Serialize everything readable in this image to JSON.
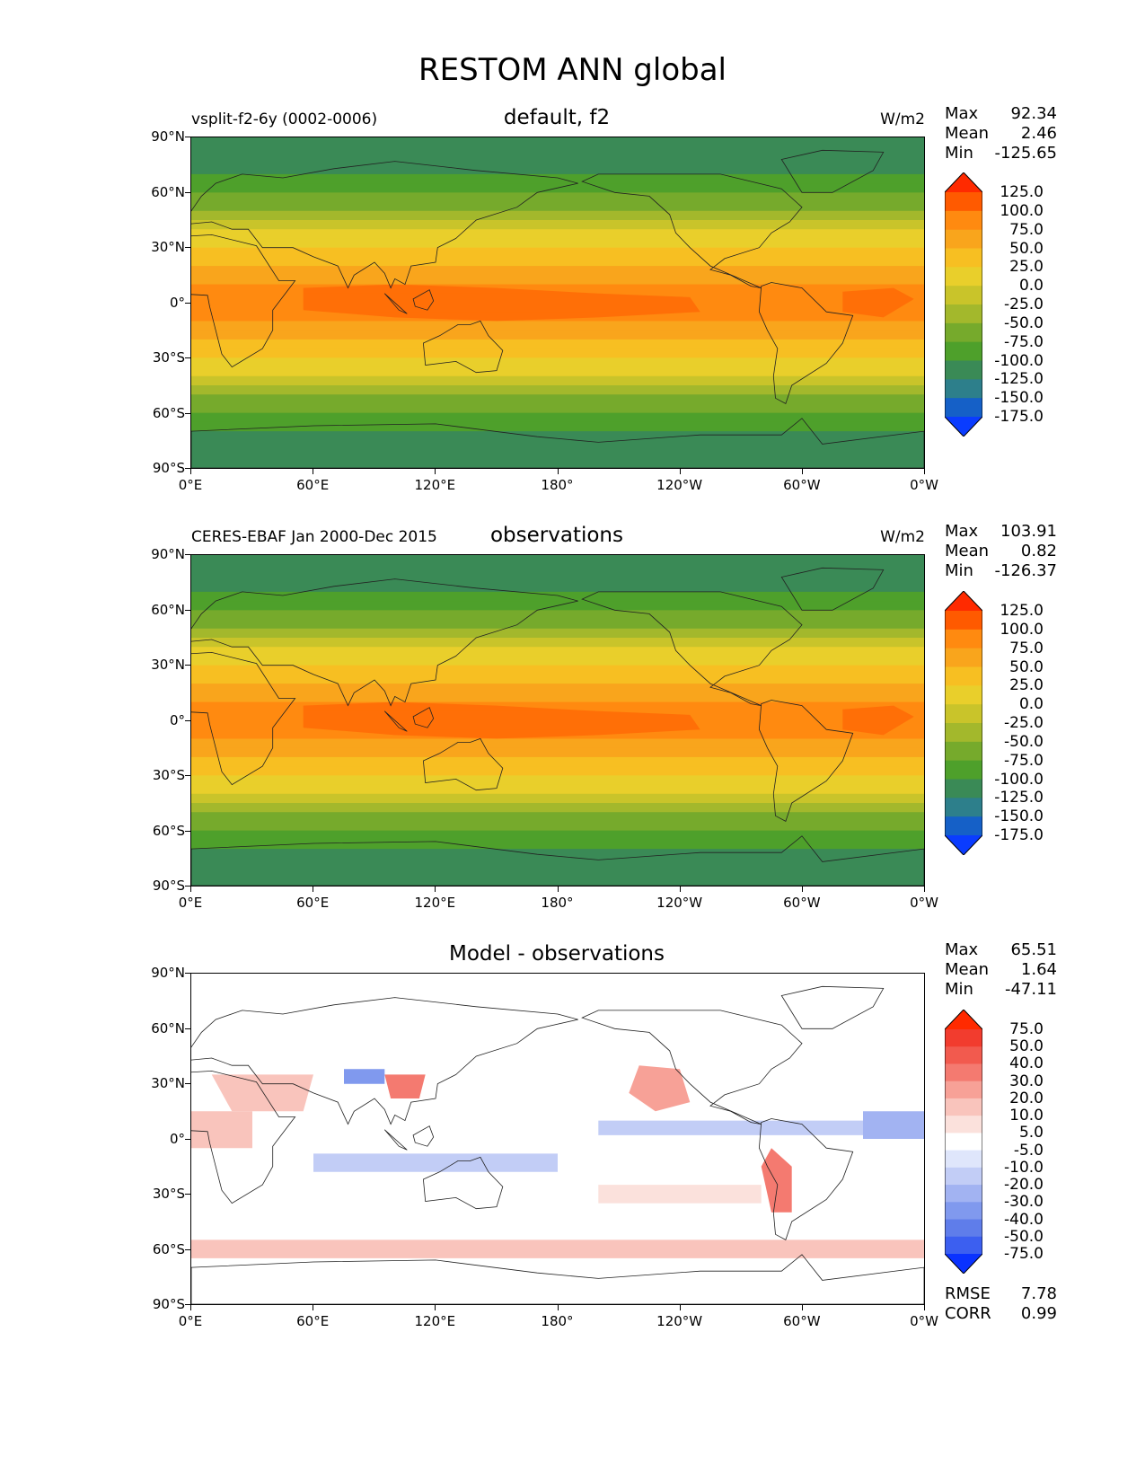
{
  "figure": {
    "title": "RESTOM ANN global"
  },
  "axes": {
    "lat_ticks": [
      "90°N",
      "60°N",
      "30°N",
      "0°",
      "30°S",
      "60°S",
      "90°S"
    ],
    "lon_ticks": [
      "0°E",
      "60°E",
      "120°E",
      "180°",
      "120°W",
      "60°W",
      "0°W"
    ]
  },
  "panels": [
    {
      "left_label": "vsplit-f2-6y (0002-0006)",
      "center_label": "default, f2",
      "units": "W/m2",
      "stats": {
        "max_label": "Max",
        "max": "92.34",
        "mean_label": "Mean",
        "mean": "2.46",
        "min_label": "Min",
        "min": "-125.65"
      }
    },
    {
      "left_label": "CERES-EBAF Jan 2000-Dec 2015",
      "center_label": "observations",
      "units": "W/m2",
      "stats": {
        "max_label": "Max",
        "max": "103.91",
        "mean_label": "Mean",
        "mean": "0.82",
        "min_label": "Min",
        "min": "-126.37"
      }
    },
    {
      "left_label": "",
      "center_label": "Model - observations",
      "units": "",
      "stats": {
        "max_label": "Max",
        "max": "65.51",
        "mean_label": "Mean",
        "mean": "1.64",
        "min_label": "Min",
        "min": "-47.11"
      },
      "rmse_label": "RMSE",
      "rmse": "7.78",
      "corr_label": "CORR",
      "corr": "0.99"
    }
  ],
  "colorbar_main": {
    "labels": [
      "125.0",
      "100.0",
      "75.0",
      "50.0",
      "25.0",
      "0.0",
      "-25.0",
      "-50.0",
      "-75.0",
      "-100.0",
      "-125.0",
      "-150.0",
      "-175.0"
    ],
    "colors": [
      "#ff2a00",
      "#ff5a00",
      "#ff8a10",
      "#f9a51c",
      "#f7bf22",
      "#e9cf2b",
      "#c9c42a",
      "#a3b82c",
      "#76aa2c",
      "#4ea02b",
      "#3a8a56",
      "#2d7f8b",
      "#1560c7",
      "#0a3cff"
    ]
  },
  "colorbar_diff": {
    "labels": [
      "75.0",
      "50.0",
      "40.0",
      "30.0",
      "20.0",
      "10.0",
      "5.0",
      "-5.0",
      "-10.0",
      "-20.0",
      "-30.0",
      "-40.0",
      "-50.0",
      "-75.0"
    ],
    "colors": [
      "#ff2a00",
      "#f23c2e",
      "#f25a4e",
      "#f47a70",
      "#f7a197",
      "#f9c4bc",
      "#fbe1dc",
      "#ffffff",
      "#dfe6fb",
      "#c2cdf6",
      "#a2b3f2",
      "#8099ee",
      "#5f7dea",
      "#3c5ff0",
      "#0a32ff"
    ]
  },
  "chart_data": [
    {
      "type": "heatmap",
      "title": "default, f2",
      "units": "W/m2",
      "max": 92.34,
      "mean": 2.46,
      "min": -125.65
    },
    {
      "type": "heatmap",
      "title": "observations",
      "units": "W/m2",
      "max": 103.91,
      "mean": 0.82,
      "min": -126.37
    },
    {
      "type": "heatmap",
      "title": "Model - observations",
      "max": 65.51,
      "mean": 1.64,
      "min": -47.11,
      "rmse": 7.78,
      "corr": 0.99
    }
  ]
}
